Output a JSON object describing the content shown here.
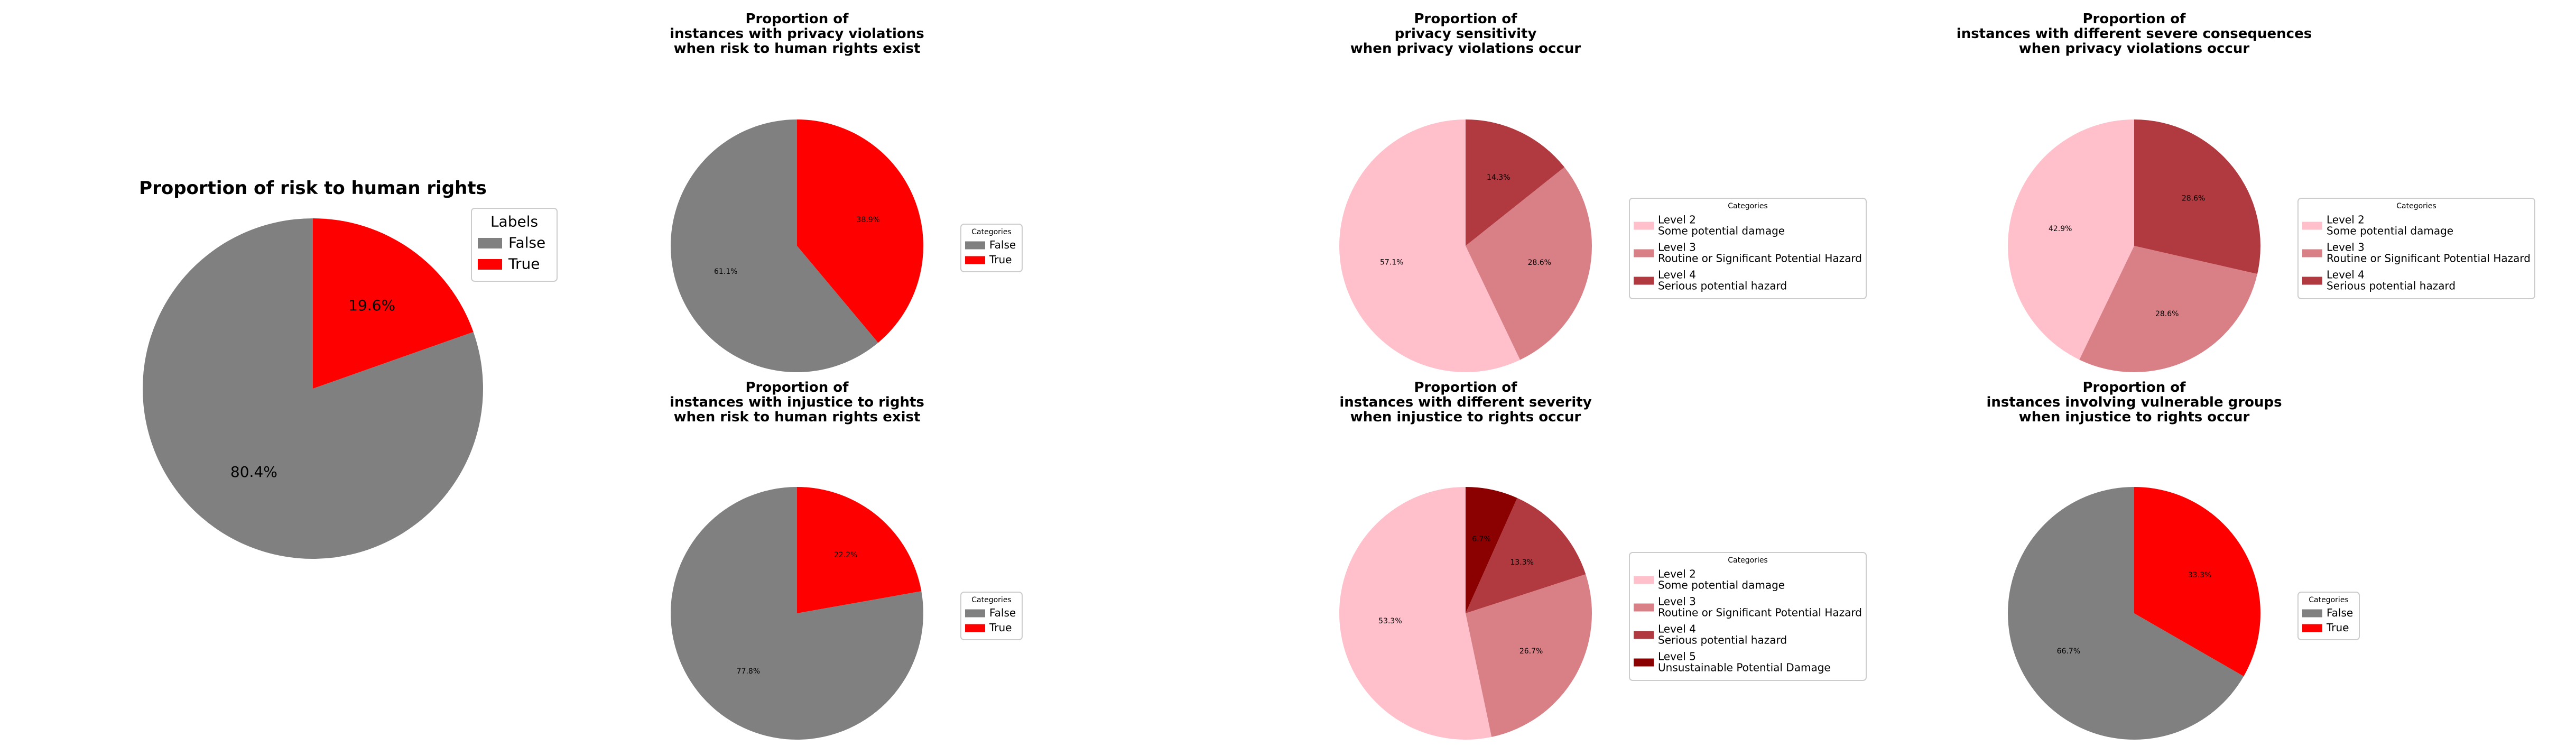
{
  "chart_data": [
    {
      "type": "pie",
      "title": "Proportion of risk to human rights",
      "legend_title": "Labels",
      "legend_position": "upper-right",
      "slices": [
        {
          "label": "False",
          "value": 80.4,
          "pct_label": "80.4%",
          "color": "#808080"
        },
        {
          "label": "True",
          "value": 19.6,
          "pct_label": "19.6%",
          "color": "#ff0000"
        }
      ]
    },
    {
      "type": "pie",
      "title": "Proportion of\ninstances with privacy violations\nwhen risk to human rights exist",
      "legend_title": "Categories",
      "legend_position": "right",
      "slices": [
        {
          "label": "False",
          "value": 61.1,
          "pct_label": "61.1%",
          "color": "#808080"
        },
        {
          "label": "True",
          "value": 38.9,
          "pct_label": "38.9%",
          "color": "#ff0000"
        }
      ]
    },
    {
      "type": "pie",
      "title": "Proportion of\nprivacy sensitivity\nwhen privacy violations occur",
      "legend_title": "Categories",
      "legend_position": "right",
      "slices": [
        {
          "label": "Level 2\nSome potential damage",
          "value": 57.1,
          "pct_label": "57.1%",
          "color": "#ffc0cb"
        },
        {
          "label": "Level 3\nRoutine or Significant Potential Hazard",
          "value": 28.6,
          "pct_label": "28.6%",
          "color": "#d98087"
        },
        {
          "label": "Level 4\nSerious potential hazard",
          "value": 14.3,
          "pct_label": "14.3%",
          "color": "#b03a40"
        }
      ]
    },
    {
      "type": "pie",
      "title": "Proportion of\ninstances with different severe consequences\nwhen privacy violations occur",
      "legend_title": "Categories",
      "legend_position": "right",
      "slices": [
        {
          "label": "Level 2\nSome potential damage",
          "value": 42.9,
          "pct_label": "42.9%",
          "color": "#ffc0cb"
        },
        {
          "label": "Level 3\nRoutine or Significant Potential Hazard",
          "value": 28.6,
          "pct_label": "28.6%",
          "color": "#d98087"
        },
        {
          "label": "Level 4\nSerious potential hazard",
          "value": 28.6,
          "pct_label": "28.6%",
          "color": "#b03a40"
        }
      ]
    },
    {
      "type": "pie",
      "title": "Proportion of\ninstances with injustice to rights\nwhen risk to human rights exist",
      "legend_title": "Categories",
      "legend_position": "right",
      "slices": [
        {
          "label": "False",
          "value": 77.8,
          "pct_label": "77.8%",
          "color": "#808080"
        },
        {
          "label": "True",
          "value": 22.2,
          "pct_label": "22.2%",
          "color": "#ff0000"
        }
      ]
    },
    {
      "type": "pie",
      "title": "Proportion of\ninstances with different severity\nwhen injustice to rights occur",
      "legend_title": "Categories",
      "legend_position": "right",
      "slices": [
        {
          "label": "Level 2\nSome potential damage",
          "value": 53.3,
          "pct_label": "53.3%",
          "color": "#ffc0cb"
        },
        {
          "label": "Level 3\nRoutine or Significant Potential Hazard",
          "value": 26.7,
          "pct_label": "26.7%",
          "color": "#d98087"
        },
        {
          "label": "Level 4\nSerious potential hazard",
          "value": 13.3,
          "pct_label": "13.3%",
          "color": "#b03a40"
        },
        {
          "label": "Level 5\nUnsustainable Potential Damage",
          "value": 6.7,
          "pct_label": "6.7%",
          "color": "#8b0000"
        }
      ]
    },
    {
      "type": "pie",
      "title": "Proportion of\ninstances involving vulnerable groups\nwhen injustice to rights occur",
      "legend_title": "Categories",
      "legend_position": "right",
      "slices": [
        {
          "label": "False",
          "value": 66.7,
          "pct_label": "66.7%",
          "color": "#808080"
        },
        {
          "label": "True",
          "value": 33.3,
          "pct_label": "33.3%",
          "color": "#ff0000"
        }
      ]
    }
  ]
}
